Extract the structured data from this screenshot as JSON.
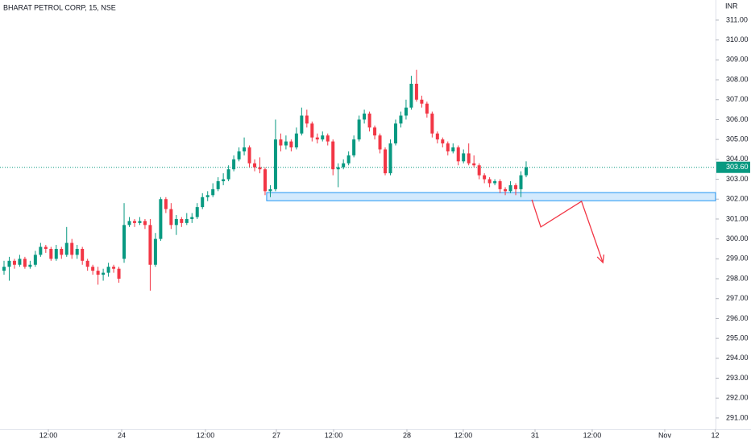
{
  "chart_data": {
    "type": "candlestick",
    "title": "BHARAT PETROL CORP, 15, NSE",
    "currency": "INR",
    "up_color": "#089981",
    "down_color": "#f23645",
    "ohlc": [
      [
        298.4,
        298.9,
        298.2,
        298.6
      ],
      [
        298.6,
        299.1,
        297.9,
        298.9
      ],
      [
        298.9,
        299.0,
        298.5,
        298.7
      ],
      [
        298.7,
        299.2,
        298.6,
        299.0
      ],
      [
        299.0,
        299.1,
        298.5,
        298.6
      ],
      [
        298.6,
        298.9,
        298.5,
        298.7
      ],
      [
        298.7,
        299.4,
        298.6,
        299.2
      ],
      [
        299.2,
        299.8,
        299.1,
        299.6
      ],
      [
        299.6,
        299.7,
        299.3,
        299.5
      ],
      [
        299.5,
        299.6,
        298.9,
        299.0
      ],
      [
        299.0,
        299.7,
        298.9,
        299.5
      ],
      [
        299.5,
        299.6,
        299.0,
        299.2
      ],
      [
        299.2,
        300.6,
        299.1,
        299.8
      ],
      [
        299.8,
        300.0,
        299.0,
        299.2
      ],
      [
        299.2,
        299.7,
        299.0,
        299.5
      ],
      [
        299.5,
        299.6,
        298.7,
        298.9
      ],
      [
        298.9,
        299.0,
        298.4,
        298.6
      ],
      [
        298.6,
        298.7,
        298.2,
        298.4
      ],
      [
        298.4,
        298.6,
        297.7,
        298.2
      ],
      [
        298.2,
        298.5,
        297.9,
        298.3
      ],
      [
        298.3,
        298.8,
        298.1,
        298.6
      ],
      [
        298.6,
        298.7,
        298.3,
        298.5
      ],
      [
        298.5,
        298.6,
        297.8,
        298.0
      ],
      [
        299.0,
        301.8,
        298.8,
        300.7
      ],
      [
        300.7,
        301.1,
        300.6,
        300.9
      ],
      [
        300.9,
        301.0,
        300.6,
        300.8
      ],
      [
        300.8,
        301.1,
        300.7,
        300.9
      ],
      [
        300.9,
        301.0,
        300.5,
        300.7
      ],
      [
        300.7,
        301.0,
        297.4,
        298.7
      ],
      [
        298.7,
        300.3,
        298.6,
        300.0
      ],
      [
        300.0,
        302.1,
        299.9,
        302.0
      ],
      [
        302.0,
        302.1,
        301.3,
        301.5
      ],
      [
        301.5,
        301.8,
        300.5,
        300.7
      ],
      [
        300.7,
        301.2,
        300.2,
        301.0
      ],
      [
        301.0,
        301.1,
        300.6,
        300.8
      ],
      [
        300.8,
        301.3,
        300.7,
        301.0
      ],
      [
        301.0,
        301.3,
        300.8,
        301.1
      ],
      [
        301.1,
        301.8,
        301.0,
        301.6
      ],
      [
        301.6,
        302.3,
        301.5,
        302.1
      ],
      [
        302.1,
        302.4,
        301.9,
        302.2
      ],
      [
        302.2,
        302.8,
        302.1,
        302.5
      ],
      [
        302.5,
        303.1,
        302.4,
        302.9
      ],
      [
        302.9,
        303.3,
        302.7,
        303.0
      ],
      [
        303.0,
        303.7,
        302.9,
        303.5
      ],
      [
        303.5,
        304.2,
        303.4,
        304.0
      ],
      [
        304.0,
        304.6,
        303.9,
        304.4
      ],
      [
        304.4,
        305.1,
        304.2,
        304.6
      ],
      [
        304.6,
        304.7,
        303.6,
        303.8
      ],
      [
        303.8,
        304.0,
        303.4,
        303.6
      ],
      [
        303.6,
        304.1,
        303.3,
        303.5
      ],
      [
        303.5,
        303.6,
        302.2,
        302.4
      ],
      [
        302.4,
        302.7,
        302.1,
        302.5
      ],
      [
        302.5,
        306.0,
        302.4,
        305.0
      ],
      [
        305.0,
        305.3,
        304.4,
        304.7
      ],
      [
        304.7,
        305.2,
        304.5,
        304.9
      ],
      [
        304.9,
        305.0,
        304.4,
        304.6
      ],
      [
        304.6,
        305.6,
        304.5,
        305.3
      ],
      [
        305.3,
        306.6,
        305.2,
        306.2
      ],
      [
        306.2,
        306.5,
        305.6,
        305.8
      ],
      [
        305.8,
        305.9,
        304.9,
        305.1
      ],
      [
        305.1,
        305.3,
        304.8,
        305.0
      ],
      [
        305.0,
        305.4,
        304.9,
        305.2
      ],
      [
        305.2,
        305.3,
        304.7,
        304.9
      ],
      [
        304.9,
        305.0,
        303.2,
        303.5
      ],
      [
        303.5,
        303.8,
        302.6,
        303.6
      ],
      [
        303.6,
        304.0,
        303.5,
        303.8
      ],
      [
        303.8,
        304.4,
        303.7,
        304.2
      ],
      [
        304.2,
        305.2,
        304.1,
        305.0
      ],
      [
        305.0,
        306.2,
        304.9,
        306.0
      ],
      [
        306.0,
        306.5,
        305.8,
        306.3
      ],
      [
        306.3,
        306.4,
        305.4,
        305.6
      ],
      [
        305.6,
        305.7,
        305.0,
        305.2
      ],
      [
        305.2,
        305.3,
        304.3,
        304.5
      ],
      [
        304.5,
        304.6,
        303.2,
        303.3
      ],
      [
        303.3,
        305.0,
        303.2,
        304.8
      ],
      [
        304.8,
        306.0,
        304.7,
        305.8
      ],
      [
        305.8,
        306.4,
        305.6,
        306.2
      ],
      [
        306.2,
        307.0,
        306.0,
        306.6
      ],
      [
        306.6,
        308.2,
        306.5,
        307.8
      ],
      [
        307.8,
        308.5,
        306.9,
        307.0
      ],
      [
        307.0,
        307.2,
        306.6,
        306.8
      ],
      [
        306.8,
        306.9,
        306.1,
        306.3
      ],
      [
        306.3,
        306.4,
        305.1,
        305.3
      ],
      [
        305.3,
        305.4,
        304.8,
        305.0
      ],
      [
        305.0,
        305.1,
        304.6,
        304.8
      ],
      [
        304.8,
        304.9,
        304.2,
        304.4
      ],
      [
        304.4,
        304.8,
        304.3,
        304.6
      ],
      [
        304.6,
        304.7,
        303.7,
        303.9
      ],
      [
        303.9,
        304.5,
        303.8,
        304.3
      ],
      [
        304.3,
        304.8,
        303.7,
        303.8
      ],
      [
        303.8,
        304.2,
        303.6,
        303.7
      ],
      [
        303.7,
        303.8,
        303.0,
        303.2
      ],
      [
        303.2,
        303.3,
        302.8,
        303.0
      ],
      [
        303.0,
        303.1,
        302.6,
        302.8
      ],
      [
        302.8,
        303.0,
        302.7,
        302.9
      ],
      [
        302.9,
        303.0,
        302.3,
        302.5
      ],
      [
        302.5,
        302.6,
        302.2,
        302.4
      ],
      [
        302.4,
        302.9,
        302.3,
        302.7
      ],
      [
        302.7,
        302.8,
        302.2,
        302.5
      ],
      [
        302.5,
        303.4,
        302.1,
        303.2
      ],
      [
        303.2,
        303.9,
        303.1,
        303.6
      ]
    ],
    "xlim": [
      -0.77,
      136.27
    ],
    "xticks": [
      {
        "value": 8.49,
        "label": "12:00"
      },
      {
        "value": 22.53,
        "label": "24"
      },
      {
        "value": 38.58,
        "label": "12:00"
      },
      {
        "value": 52.16,
        "label": "27"
      },
      {
        "value": 63.12,
        "label": "12:00"
      },
      {
        "value": 77.16,
        "label": "28"
      },
      {
        "value": 87.96,
        "label": "12:00"
      },
      {
        "value": 101.7,
        "label": "31"
      },
      {
        "value": 112.65,
        "label": "12:00"
      },
      {
        "value": 126.54,
        "label": "Nov"
      },
      {
        "value": 136.2,
        "label": "12"
      }
    ],
    "ylim": [
      290.43,
      312.01
    ],
    "yticks": [
      {
        "value": 291,
        "label": "291.00"
      },
      {
        "value": 292,
        "label": "292.00"
      },
      {
        "value": 293,
        "label": "293.00"
      },
      {
        "value": 294,
        "label": "294.00"
      },
      {
        "value": 295,
        "label": "295.00"
      },
      {
        "value": 296,
        "label": "296.00"
      },
      {
        "value": 297,
        "label": "297.00"
      },
      {
        "value": 298,
        "label": "298.00"
      },
      {
        "value": 299,
        "label": "299.00"
      },
      {
        "value": 300,
        "label": "300.00"
      },
      {
        "value": 301,
        "label": "301.00"
      },
      {
        "value": 302,
        "label": "302.00"
      },
      {
        "value": 303,
        "label": "303.00"
      },
      {
        "value": 304,
        "label": "304.00"
      },
      {
        "value": 305,
        "label": "305.00"
      },
      {
        "value": 306,
        "label": "306.00"
      },
      {
        "value": 307,
        "label": "307.00"
      },
      {
        "value": 308,
        "label": "308.00"
      },
      {
        "value": 309,
        "label": "309.00"
      },
      {
        "value": 310,
        "label": "310.00"
      },
      {
        "value": 311,
        "label": "311.00"
      }
    ],
    "last_price": {
      "value": 303.6,
      "label": "303.60"
    },
    "zone": {
      "x_start": 50.3,
      "low": 301.92,
      "high": 302.33
    },
    "arrow": [
      [
        101.1,
        301.97
      ],
      [
        102.8,
        300.6
      ],
      [
        110.6,
        301.89
      ],
      [
        114.7,
        298.81
      ]
    ]
  }
}
